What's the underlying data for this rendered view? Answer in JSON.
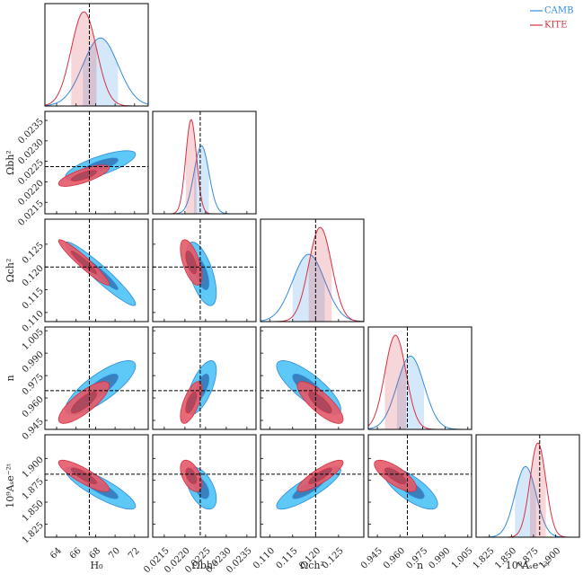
{
  "chart_data": {
    "type": "corner",
    "legend_position": "upper right",
    "parameters": [
      {
        "label": "H₀",
        "lim": [
          62.8,
          73.4
        ],
        "ticks": [
          64,
          66,
          68,
          70,
          72
        ],
        "truth": 67.36
      },
      {
        "label": "Ωbh²",
        "lim": [
          0.02122,
          0.02372
        ],
        "ticks": [
          0.0215,
          {
            "value": 0.022,
            "label": "0.0220"
          },
          0.0225,
          {
            "value": 0.023,
            "label": "0.0230"
          },
          0.0235
        ],
        "truth": 0.02237
      },
      {
        "label": "Ωch²",
        "lim": [
          0.108,
          0.1305
        ],
        "ticks": [
          {
            "value": 0.11,
            "label": "0.110"
          },
          0.115,
          {
            "value": 0.12,
            "label": "0.120"
          },
          0.125
        ],
        "truth": 0.12
      },
      {
        "label": "n",
        "lim": [
          0.939,
          1.0075
        ],
        "ticks": [
          0.945,
          {
            "value": 0.96,
            "label": "0.960"
          },
          0.975,
          {
            "value": 0.99,
            "label": "0.990"
          },
          1.005
        ],
        "truth": 0.9649
      },
      {
        "label": "10⁹Aₛe⁻²ᵗ",
        "lim": [
          1.81,
          1.927
        ],
        "ticks": [
          1.825,
          {
            "value": 1.85,
            "label": "1.850"
          },
          1.875,
          {
            "value": 1.9,
            "label": "1.900"
          }
        ],
        "truth": 1.882
      }
    ],
    "series": [
      {
        "name": "CAMB",
        "color": "#2f8be0",
        "fill_outer": "#4cc3f5",
        "fill_inner": "#2f67a8",
        "mean": [
          68.5,
          0.0224,
          0.1185,
          0.967,
          1.866
        ],
        "sigma": [
          1.8,
          0.00018,
          0.0035,
          0.009,
          0.012
        ]
      },
      {
        "name": "KITE",
        "color": "#d63040",
        "fill_outer": "#e45a69",
        "fill_inner": "#9c4257",
        "mean": [
          66.8,
          0.02215,
          0.121,
          0.957,
          1.88
        ],
        "sigma": [
          1.3,
          0.00013,
          0.0025,
          0.007,
          0.009
        ]
      }
    ],
    "correlation": [
      [
        1,
        0.75,
        -0.95,
        0.8,
        -0.85
      ],
      [
        0.75,
        1,
        -0.6,
        0.65,
        -0.5
      ],
      [
        -0.95,
        -0.6,
        1,
        -0.8,
        0.85
      ],
      [
        0.8,
        0.65,
        -0.8,
        1,
        -0.75
      ],
      [
        -0.85,
        -0.5,
        0.85,
        -0.75,
        1
      ]
    ]
  }
}
